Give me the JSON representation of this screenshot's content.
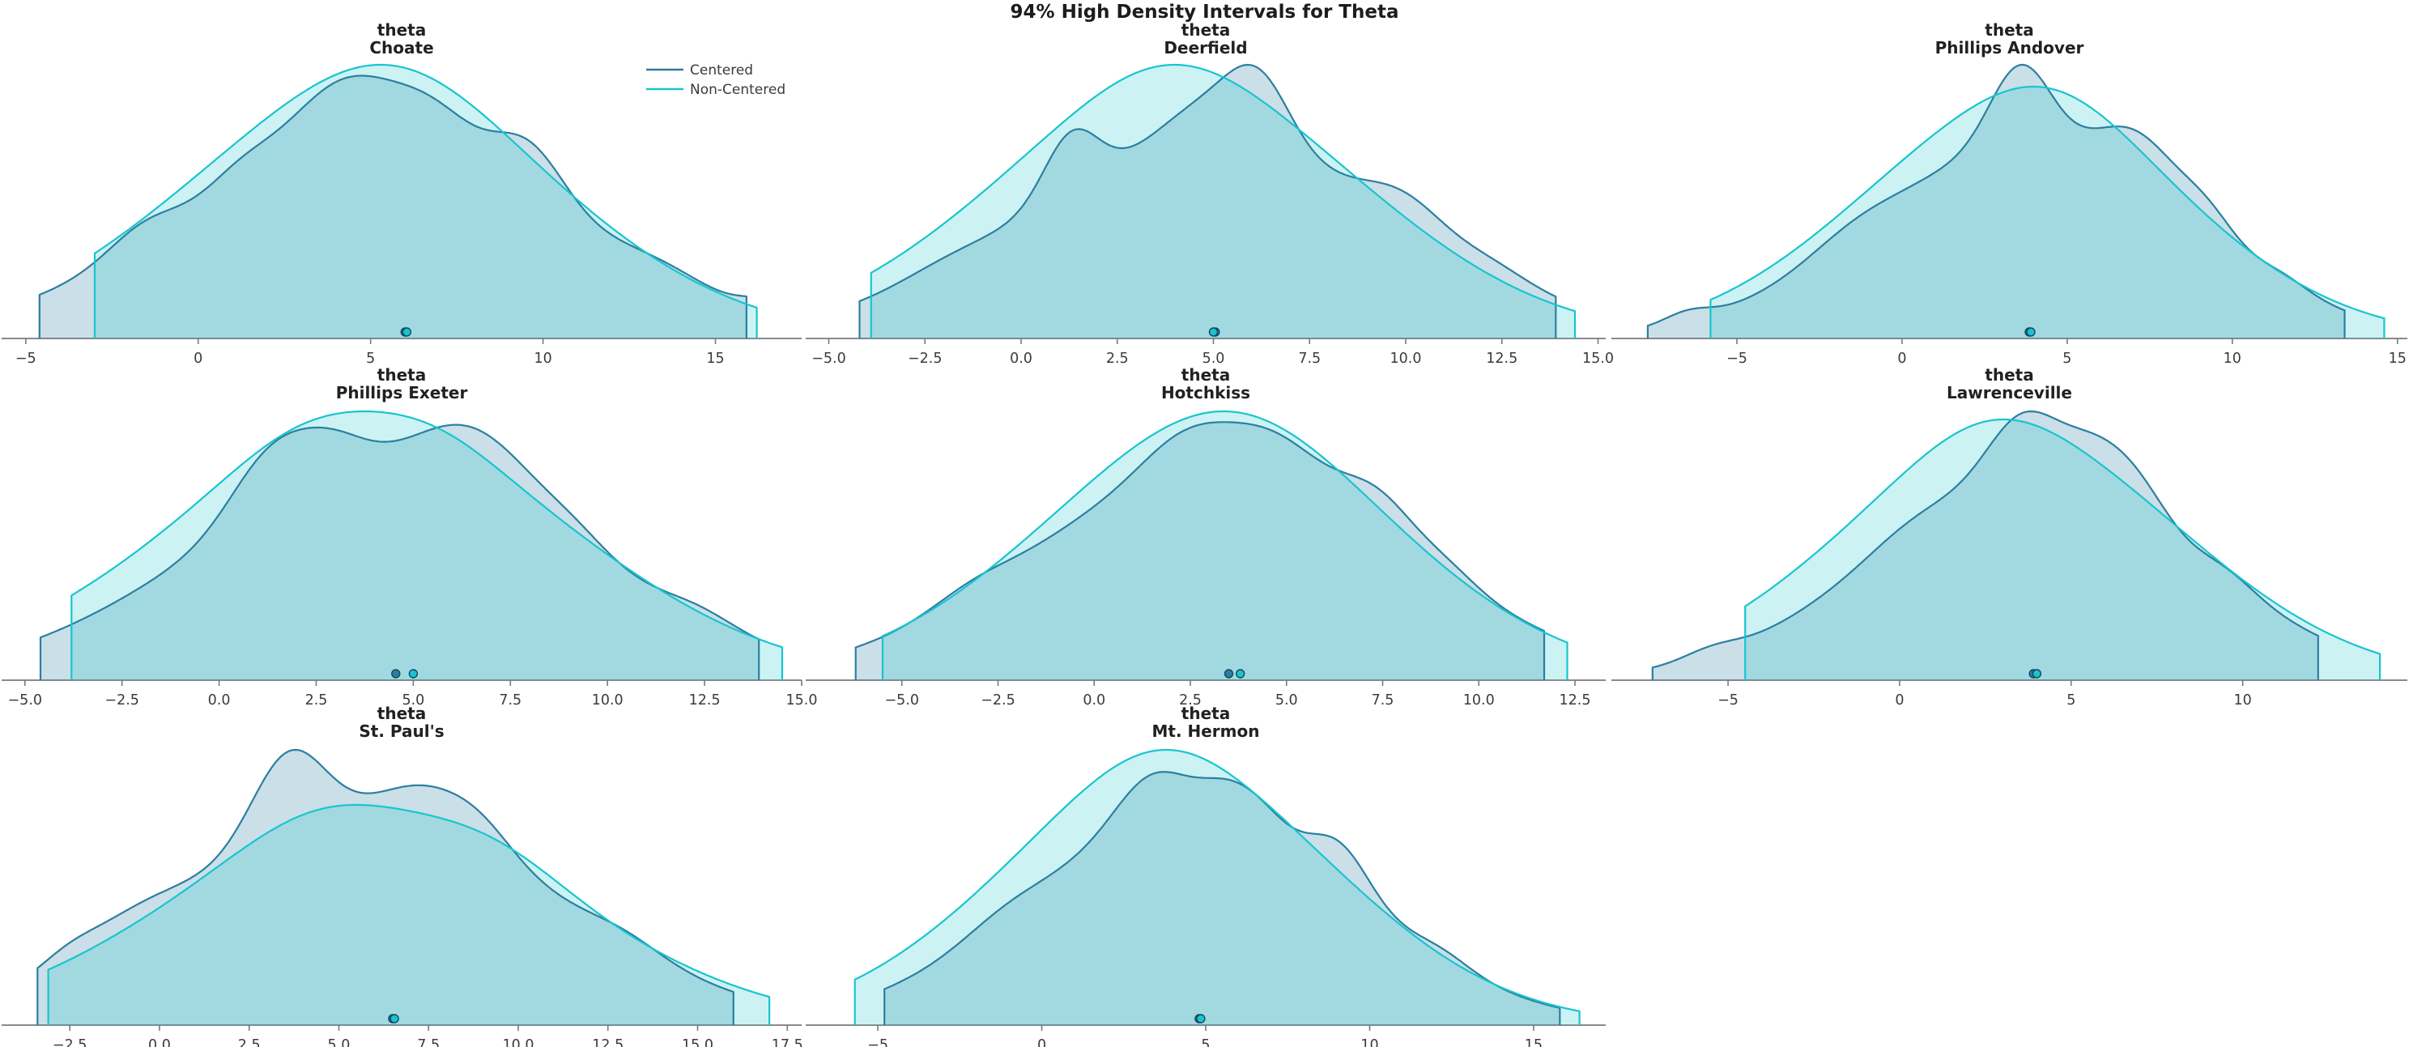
{
  "chart_data": {
    "type": "area",
    "title": "94% High Density Intervals for Theta",
    "parameter": "theta",
    "hdi_probability": "94%",
    "legend_position": "top-right-of-first-subplot",
    "grid": {
      "rows": 3,
      "cols": 3,
      "empty_cells": 1
    },
    "legend": [
      {
        "name": "Centered",
        "color": "#2c7fa0"
      },
      {
        "name": "Non-Centered",
        "color": "#18c5ce"
      }
    ],
    "subplots": [
      {
        "param": "theta",
        "school": "Choate",
        "xlim": [
          -5.7,
          17.5
        ],
        "ticks": [
          -5,
          0,
          5,
          10,
          15
        ],
        "tick_labels": [
          "−5",
          "0",
          "5",
          "10",
          "15"
        ],
        "show_legend": true,
        "series": [
          {
            "name": "Centered",
            "hdi": [
              -4.6,
              15.9
            ],
            "point": 6.0,
            "mean": 5.2,
            "sd": 5.6,
            "amp": 0.96,
            "bumps": [
              [
                -1.6,
                0.1,
                1.0
              ],
              [
                1.2,
                0.08,
                0.9
              ],
              [
                4.3,
                0.3,
                1.5
              ],
              [
                6.9,
                0.16,
                1.1
              ],
              [
                9.6,
                0.24,
                1.0
              ],
              [
                13.5,
                0.05,
                1.2
              ],
              [
                16.5,
                0.06,
                0.7
              ]
            ]
          },
          {
            "name": "Non-Centered",
            "hdi": [
              -3.0,
              16.2
            ],
            "point": 6.05,
            "mean": 5.0,
            "sd": 5.5,
            "amp": 1.0,
            "bumps": [
              [
                5.8,
                0.12,
                2.5
              ]
            ]
          }
        ]
      },
      {
        "param": "theta",
        "school": "Deerfield",
        "xlim": [
          -5.6,
          15.2
        ],
        "ticks": [
          -5,
          -2.5,
          0,
          2.5,
          5,
          7.5,
          10,
          12.5,
          15
        ],
        "tick_labels": [
          "−5.0",
          "−2.5",
          "0.0",
          "2.5",
          "5.0",
          "7.5",
          "10.0",
          "12.5",
          "15.0"
        ],
        "show_legend": false,
        "series": [
          {
            "name": "Centered",
            "hdi": [
              -4.2,
              13.9
            ],
            "point": 5.05,
            "mean": 5.0,
            "sd": 5.0,
            "amp": 1.0,
            "bumps": [
              [
                1.3,
                0.3,
                0.7
              ],
              [
                4.9,
                0.2,
                1.2
              ],
              [
                6.2,
                0.3,
                0.8
              ],
              [
                10.0,
                0.14,
                1.0
              ],
              [
                -2.0,
                0.04,
                1.2
              ],
              [
                12.3,
                0.05,
                0.9
              ]
            ]
          },
          {
            "name": "Non-Centered",
            "hdi": [
              -3.9,
              14.4
            ],
            "point": 5.0,
            "mean": 4.1,
            "sd": 4.9,
            "amp": 1.0,
            "bumps": [
              [
                3.8,
                0.1,
                2.0
              ]
            ]
          }
        ]
      },
      {
        "param": "theta",
        "school": "Phillips Andover",
        "xlim": [
          -8.8,
          15.3
        ],
        "ticks": [
          -5,
          0,
          5,
          10,
          15
        ],
        "tick_labels": [
          "−5",
          "0",
          "5",
          "10",
          "15"
        ],
        "show_legend": false,
        "series": [
          {
            "name": "Centered",
            "hdi": [
              -7.7,
              13.4
            ],
            "point": 3.85,
            "mean": 3.9,
            "sd": 4.8,
            "amp": 1.0,
            "bumps": [
              [
                3.6,
                0.4,
                0.9
              ],
              [
                7.2,
                0.26,
                1.2
              ],
              [
                9.3,
                0.12,
                0.8
              ],
              [
                -1.5,
                0.07,
                1.3
              ],
              [
                -6.5,
                0.05,
                0.7
              ],
              [
                11.5,
                0.05,
                0.8
              ]
            ]
          },
          {
            "name": "Non-Centered",
            "hdi": [
              -5.8,
              14.6
            ],
            "point": 3.9,
            "mean": 3.6,
            "sd": 5.0,
            "amp": 0.92,
            "bumps": [
              [
                4.6,
                0.12,
                2.2
              ]
            ]
          }
        ]
      },
      {
        "param": "theta",
        "school": "Phillips Exeter",
        "xlim": [
          -5.6,
          15.0
        ],
        "ticks": [
          -5,
          -2.5,
          0,
          2.5,
          5,
          7.5,
          10,
          12.5,
          15
        ],
        "tick_labels": [
          "−5.0",
          "−2.5",
          "0.0",
          "2.5",
          "5.0",
          "7.5",
          "10.0",
          "12.5",
          "15.0"
        ],
        "show_legend": false,
        "series": [
          {
            "name": "Centered",
            "hdi": [
              -4.6,
              13.9
            ],
            "point": 4.55,
            "mean": 4.5,
            "sd": 5.1,
            "amp": 0.95,
            "bumps": [
              [
                1.3,
                0.26,
                1.0
              ],
              [
                2.9,
                0.16,
                0.9
              ],
              [
                6.6,
                0.28,
                1.5
              ],
              [
                9.2,
                0.05,
                0.8
              ],
              [
                12.4,
                0.05,
                0.9
              ]
            ]
          },
          {
            "name": "Non-Centered",
            "hdi": [
              -3.8,
              14.5
            ],
            "point": 5.0,
            "mean": 3.9,
            "sd": 5.3,
            "amp": 1.0,
            "bumps": [
              [
                2.3,
                0.1,
                1.8
              ],
              [
                5.6,
                0.07,
                1.5
              ]
            ]
          }
        ]
      },
      {
        "param": "theta",
        "school": "Hotchkiss",
        "xlim": [
          -7.5,
          13.3
        ],
        "ticks": [
          -5,
          -2.5,
          0,
          2.5,
          5,
          7.5,
          10,
          12.5
        ],
        "tick_labels": [
          "−5.0",
          "−2.5",
          "0.0",
          "2.5",
          "5.0",
          "7.5",
          "10.0",
          "12.5"
        ],
        "show_legend": false,
        "series": [
          {
            "name": "Centered",
            "hdi": [
              -6.2,
              11.7
            ],
            "point": 3.5,
            "mean": 3.3,
            "sd": 4.9,
            "amp": 0.96,
            "bumps": [
              [
                2.4,
                0.16,
                1.1
              ],
              [
                4.7,
                0.18,
                1.2
              ],
              [
                7.4,
                0.17,
                0.9
              ],
              [
                -3.2,
                0.05,
                1.0
              ],
              [
                9.2,
                0.06,
                0.8
              ]
            ]
          },
          {
            "name": "Non-Centered",
            "hdi": [
              -5.5,
              12.3
            ],
            "point": 3.8,
            "mean": 3.2,
            "sd": 4.7,
            "amp": 1.0,
            "bumps": [
              [
                3.8,
                0.1,
                2.4
              ]
            ]
          }
        ]
      },
      {
        "param": "theta",
        "school": "Lawrenceville",
        "xlim": [
          -8.4,
          14.8
        ],
        "ticks": [
          -5,
          0,
          5,
          10
        ],
        "tick_labels": [
          "−5",
          "0",
          "5",
          "10"
        ],
        "show_legend": false,
        "series": [
          {
            "name": "Centered",
            "hdi": [
              -7.2,
              12.2
            ],
            "point": 3.9,
            "mean": 4.0,
            "sd": 4.7,
            "amp": 1.0,
            "bumps": [
              [
                3.6,
                0.3,
                1.0
              ],
              [
                5.8,
                0.22,
                1.0
              ],
              [
                7.1,
                0.1,
                0.8
              ],
              [
                0.3,
                0.05,
                1.2
              ],
              [
                -5.5,
                0.04,
                0.8
              ],
              [
                9.6,
                0.05,
                0.8
              ]
            ]
          },
          {
            "name": "Non-Centered",
            "hdi": [
              -4.5,
              14.0
            ],
            "point": 4.0,
            "mean": 3.3,
            "sd": 5.1,
            "amp": 0.97,
            "bumps": [
              [
                2.6,
                0.1,
                2.0
              ]
            ]
          }
        ]
      },
      {
        "param": "theta",
        "school": "St. Paul's",
        "xlim": [
          -4.4,
          17.9
        ],
        "ticks": [
          -2.5,
          0,
          2.5,
          5,
          7.5,
          10,
          12.5,
          15,
          17.5
        ],
        "tick_labels": [
          "−2.5",
          "0.0",
          "2.5",
          "5.0",
          "7.5",
          "10.0",
          "12.5",
          "15.0",
          "17.5"
        ],
        "show_legend": false,
        "series": [
          {
            "name": "Centered",
            "hdi": [
              -3.4,
              16.0
            ],
            "point": 6.5,
            "mean": 5.8,
            "sd": 5.3,
            "amp": 1.0,
            "bumps": [
              [
                3.6,
                0.38,
                1.0
              ],
              [
                7.4,
                0.16,
                1.2
              ],
              [
                9.0,
                0.1,
                0.9
              ],
              [
                -0.8,
                0.09,
                1.3
              ],
              [
                -2.6,
                0.06,
                0.8
              ],
              [
                13.0,
                0.05,
                1.0
              ]
            ]
          },
          {
            "name": "Non-Centered",
            "hdi": [
              -3.1,
              17.0
            ],
            "point": 6.55,
            "mean": 5.9,
            "sd": 5.6,
            "amp": 0.8,
            "bumps": [
              [
                4.4,
                0.1,
                2.0
              ],
              [
                9.4,
                0.09,
                1.8
              ]
            ]
          }
        ]
      },
      {
        "param": "theta",
        "school": "Mt. Hermon",
        "xlim": [
          -7.2,
          17.2
        ],
        "ticks": [
          -5,
          0,
          5,
          10,
          15
        ],
        "tick_labels": [
          "−5",
          "0",
          "5",
          "10",
          "15"
        ],
        "show_legend": false,
        "series": [
          {
            "name": "Centered",
            "hdi": [
              -4.8,
              15.8
            ],
            "point": 4.8,
            "mean": 4.6,
            "sd": 5.0,
            "amp": 0.92,
            "bumps": [
              [
                3.4,
                0.22,
                1.1
              ],
              [
                5.6,
                0.12,
                0.8
              ],
              [
                6.7,
                0.1,
                0.8
              ],
              [
                9.1,
                0.2,
                0.9
              ],
              [
                -1.2,
                0.05,
                1.2
              ],
              [
                12.2,
                0.05,
                0.9
              ]
            ]
          },
          {
            "name": "Non-Centered",
            "hdi": [
              -5.7,
              16.4
            ],
            "point": 4.85,
            "mean": 3.9,
            "sd": 5.2,
            "amp": 1.0,
            "bumps": [
              [
                3.6,
                0.1,
                2.2
              ]
            ]
          }
        ]
      }
    ]
  },
  "colors": {
    "centered_line": "#2c7fa0",
    "centered_fill": "rgba(44,127,160,0.25)",
    "noncentered_line": "#18c5ce",
    "noncentered_fill": "rgba(24,197,206,0.22)",
    "point_stroke": "#12485c",
    "axis": "#7a7a7a",
    "tick_label": "#3b3b3b",
    "title_text": "#1f1f1f",
    "background": "#ffffff"
  }
}
